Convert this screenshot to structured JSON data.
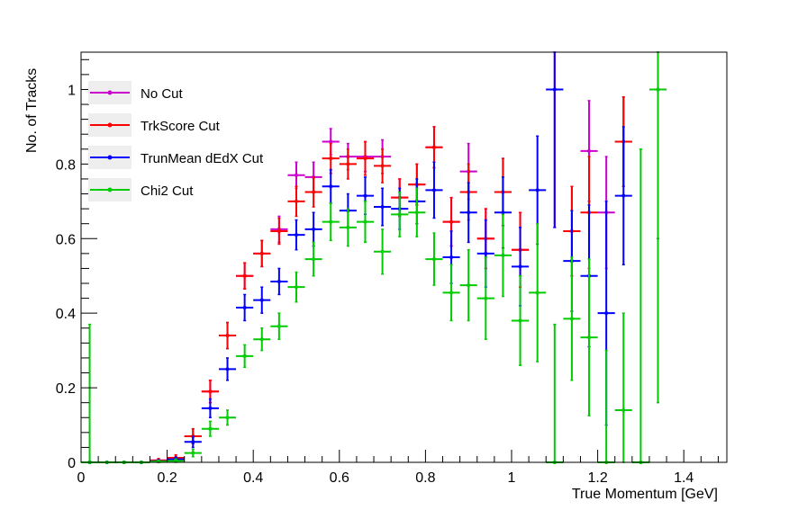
{
  "chart_data": {
    "type": "scatter",
    "xlabel": "True Momentum [GeV]",
    "ylabel": "No. of Tracks",
    "xlim": [
      0,
      1.5
    ],
    "ylim": [
      0,
      1.1
    ],
    "x_ticks": [
      "0",
      "0.2",
      "0.4",
      "0.6",
      "0.8",
      "1",
      "1.2",
      "1.4"
    ],
    "y_ticks": [
      "0",
      "0.2",
      "0.4",
      "0.6",
      "0.8",
      "1"
    ],
    "x_tick_values": [
      0,
      0.2,
      0.4,
      0.6,
      0.8,
      1.0,
      1.2,
      1.4
    ],
    "y_tick_values": [
      0,
      0.2,
      0.4,
      0.6,
      0.8,
      1.0
    ],
    "bin_half_width": 0.02,
    "legend_position": "top-left",
    "grid": false,
    "series": [
      {
        "name": "No Cut",
        "color": "#cc00cc",
        "points": [
          {
            "x": 0.02,
            "y": 0,
            "err": 0
          },
          {
            "x": 0.06,
            "y": 0,
            "err": 0
          },
          {
            "x": 0.1,
            "y": 0,
            "err": 0
          },
          {
            "x": 0.14,
            "y": 0,
            "err": 0
          },
          {
            "x": 0.18,
            "y": 0.005,
            "err": 0.005
          },
          {
            "x": 0.22,
            "y": 0.012,
            "err": 0.008
          },
          {
            "x": 0.26,
            "y": 0.07,
            "err": 0.02
          },
          {
            "x": 0.3,
            "y": 0.19,
            "err": 0.03
          },
          {
            "x": 0.34,
            "y": 0.34,
            "err": 0.035
          },
          {
            "x": 0.38,
            "y": 0.5,
            "err": 0.035
          },
          {
            "x": 0.42,
            "y": 0.56,
            "err": 0.035
          },
          {
            "x": 0.46,
            "y": 0.625,
            "err": 0.035
          },
          {
            "x": 0.5,
            "y": 0.77,
            "err": 0.035
          },
          {
            "x": 0.54,
            "y": 0.765,
            "err": 0.04
          },
          {
            "x": 0.58,
            "y": 0.86,
            "err": 0.035
          },
          {
            "x": 0.62,
            "y": 0.82,
            "err": 0.035
          },
          {
            "x": 0.66,
            "y": 0.82,
            "err": 0.04
          },
          {
            "x": 0.7,
            "y": 0.82,
            "err": 0.045
          },
          {
            "x": 0.74,
            "y": 0.71,
            "err": 0.05
          },
          {
            "x": 0.78,
            "y": 0.745,
            "err": 0.055
          },
          {
            "x": 0.82,
            "y": 0.845,
            "err": 0.055
          },
          {
            "x": 0.86,
            "y": 0.645,
            "err": 0.065
          },
          {
            "x": 0.9,
            "y": 0.78,
            "err": 0.075
          },
          {
            "x": 0.94,
            "y": 0.6,
            "err": 0.08
          },
          {
            "x": 0.98,
            "y": 0.725,
            "err": 0.09
          },
          {
            "x": 1.02,
            "y": 0.57,
            "err": 0.1
          },
          {
            "x": 1.1,
            "y": 1.0,
            "err": 0.37
          },
          {
            "x": 1.14,
            "y": 0.62,
            "err": 0.12
          },
          {
            "x": 1.18,
            "y": 0.835,
            "err": 0.135
          },
          {
            "x": 1.22,
            "y": 0.67,
            "err": 0.15
          },
          {
            "x": 1.26,
            "y": 0.86,
            "err": 0.12
          },
          {
            "x": 1.34,
            "y": 1.0,
            "err": 0.4
          }
        ]
      },
      {
        "name": "TrkScore Cut",
        "color": "#ff0000",
        "points": [
          {
            "x": 0.02,
            "y": 0,
            "err": 0
          },
          {
            "x": 0.06,
            "y": 0,
            "err": 0
          },
          {
            "x": 0.1,
            "y": 0,
            "err": 0
          },
          {
            "x": 0.14,
            "y": 0,
            "err": 0
          },
          {
            "x": 0.18,
            "y": 0.005,
            "err": 0.005
          },
          {
            "x": 0.22,
            "y": 0.012,
            "err": 0.008
          },
          {
            "x": 0.26,
            "y": 0.07,
            "err": 0.02
          },
          {
            "x": 0.3,
            "y": 0.19,
            "err": 0.03
          },
          {
            "x": 0.34,
            "y": 0.34,
            "err": 0.035
          },
          {
            "x": 0.38,
            "y": 0.5,
            "err": 0.035
          },
          {
            "x": 0.42,
            "y": 0.56,
            "err": 0.035
          },
          {
            "x": 0.46,
            "y": 0.62,
            "err": 0.035
          },
          {
            "x": 0.5,
            "y": 0.7,
            "err": 0.04
          },
          {
            "x": 0.54,
            "y": 0.725,
            "err": 0.04
          },
          {
            "x": 0.58,
            "y": 0.815,
            "err": 0.04
          },
          {
            "x": 0.62,
            "y": 0.8,
            "err": 0.04
          },
          {
            "x": 0.66,
            "y": 0.815,
            "err": 0.045
          },
          {
            "x": 0.7,
            "y": 0.795,
            "err": 0.045
          },
          {
            "x": 0.74,
            "y": 0.71,
            "err": 0.05
          },
          {
            "x": 0.78,
            "y": 0.745,
            "err": 0.055
          },
          {
            "x": 0.82,
            "y": 0.845,
            "err": 0.055
          },
          {
            "x": 0.86,
            "y": 0.645,
            "err": 0.065
          },
          {
            "x": 0.9,
            "y": 0.725,
            "err": 0.075
          },
          {
            "x": 0.94,
            "y": 0.6,
            "err": 0.08
          },
          {
            "x": 0.98,
            "y": 0.725,
            "err": 0.09
          },
          {
            "x": 1.02,
            "y": 0.57,
            "err": 0.1
          },
          {
            "x": 1.14,
            "y": 0.62,
            "err": 0.12
          },
          {
            "x": 1.18,
            "y": 0.67,
            "err": 0.15
          },
          {
            "x": 1.26,
            "y": 0.86,
            "err": 0.12
          }
        ]
      },
      {
        "name": "TrunMean dEdX Cut",
        "color": "#0000ff",
        "points": [
          {
            "x": 0.02,
            "y": 0,
            "err": 0
          },
          {
            "x": 0.06,
            "y": 0,
            "err": 0
          },
          {
            "x": 0.1,
            "y": 0,
            "err": 0
          },
          {
            "x": 0.14,
            "y": 0,
            "err": 0
          },
          {
            "x": 0.18,
            "y": 0.003,
            "err": 0.004
          },
          {
            "x": 0.22,
            "y": 0.008,
            "err": 0.006
          },
          {
            "x": 0.26,
            "y": 0.055,
            "err": 0.015
          },
          {
            "x": 0.3,
            "y": 0.145,
            "err": 0.025
          },
          {
            "x": 0.34,
            "y": 0.25,
            "err": 0.03
          },
          {
            "x": 0.38,
            "y": 0.415,
            "err": 0.035
          },
          {
            "x": 0.42,
            "y": 0.435,
            "err": 0.035
          },
          {
            "x": 0.46,
            "y": 0.485,
            "err": 0.035
          },
          {
            "x": 0.5,
            "y": 0.61,
            "err": 0.04
          },
          {
            "x": 0.54,
            "y": 0.625,
            "err": 0.045
          },
          {
            "x": 0.58,
            "y": 0.74,
            "err": 0.045
          },
          {
            "x": 0.62,
            "y": 0.675,
            "err": 0.045
          },
          {
            "x": 0.66,
            "y": 0.715,
            "err": 0.05
          },
          {
            "x": 0.7,
            "y": 0.685,
            "err": 0.05
          },
          {
            "x": 0.74,
            "y": 0.68,
            "err": 0.055
          },
          {
            "x": 0.78,
            "y": 0.7,
            "err": 0.06
          },
          {
            "x": 0.82,
            "y": 0.73,
            "err": 0.075
          },
          {
            "x": 0.86,
            "y": 0.55,
            "err": 0.07
          },
          {
            "x": 0.9,
            "y": 0.67,
            "err": 0.08
          },
          {
            "x": 0.94,
            "y": 0.56,
            "err": 0.09
          },
          {
            "x": 0.98,
            "y": 0.67,
            "err": 0.095
          },
          {
            "x": 1.02,
            "y": 0.525,
            "err": 0.105
          },
          {
            "x": 1.06,
            "y": 0.73,
            "err": 0.145
          },
          {
            "x": 1.1,
            "y": 1.0,
            "err": 0.37
          },
          {
            "x": 1.14,
            "y": 0.54,
            "err": 0.135
          },
          {
            "x": 1.18,
            "y": 0.5,
            "err": 0.19
          },
          {
            "x": 1.22,
            "y": 0.4,
            "err": 0.3
          },
          {
            "x": 1.26,
            "y": 0.715,
            "err": 0.185
          }
        ]
      },
      {
        "name": "Chi2 Cut",
        "color": "#00cc00",
        "points": [
          {
            "x": 0.02,
            "y": 0,
            "err": 0.37
          },
          {
            "x": 0.06,
            "y": 0,
            "err": 0
          },
          {
            "x": 0.1,
            "y": 0,
            "err": 0
          },
          {
            "x": 0.14,
            "y": 0,
            "err": 0
          },
          {
            "x": 0.18,
            "y": 0.002,
            "err": 0.003
          },
          {
            "x": 0.22,
            "y": 0.004,
            "err": 0.005
          },
          {
            "x": 0.26,
            "y": 0.025,
            "err": 0.01
          },
          {
            "x": 0.3,
            "y": 0.09,
            "err": 0.02
          },
          {
            "x": 0.34,
            "y": 0.12,
            "err": 0.02
          },
          {
            "x": 0.38,
            "y": 0.285,
            "err": 0.03
          },
          {
            "x": 0.42,
            "y": 0.33,
            "err": 0.03
          },
          {
            "x": 0.46,
            "y": 0.365,
            "err": 0.035
          },
          {
            "x": 0.5,
            "y": 0.47,
            "err": 0.04
          },
          {
            "x": 0.54,
            "y": 0.545,
            "err": 0.045
          },
          {
            "x": 0.58,
            "y": 0.645,
            "err": 0.05
          },
          {
            "x": 0.62,
            "y": 0.63,
            "err": 0.05
          },
          {
            "x": 0.66,
            "y": 0.645,
            "err": 0.055
          },
          {
            "x": 0.7,
            "y": 0.565,
            "err": 0.06
          },
          {
            "x": 0.74,
            "y": 0.665,
            "err": 0.06
          },
          {
            "x": 0.78,
            "y": 0.67,
            "err": 0.065
          },
          {
            "x": 0.82,
            "y": 0.545,
            "err": 0.07
          },
          {
            "x": 0.86,
            "y": 0.455,
            "err": 0.075
          },
          {
            "x": 0.9,
            "y": 0.475,
            "err": 0.095
          },
          {
            "x": 0.94,
            "y": 0.44,
            "err": 0.11
          },
          {
            "x": 0.98,
            "y": 0.555,
            "err": 0.11
          },
          {
            "x": 1.02,
            "y": 0.38,
            "err": 0.12
          },
          {
            "x": 1.06,
            "y": 0.455,
            "err": 0.185
          },
          {
            "x": 1.1,
            "y": 0,
            "err": 0.37
          },
          {
            "x": 1.14,
            "y": 0.385,
            "err": 0.165
          },
          {
            "x": 1.18,
            "y": 0.335,
            "err": 0.21
          },
          {
            "x": 1.22,
            "y": 0,
            "err": 0.3
          },
          {
            "x": 1.26,
            "y": 0.14,
            "err": 0.26
          },
          {
            "x": 1.3,
            "y": 0,
            "err": 0.84
          },
          {
            "x": 1.34,
            "y": 1.0,
            "err": 0.84
          }
        ]
      }
    ]
  }
}
